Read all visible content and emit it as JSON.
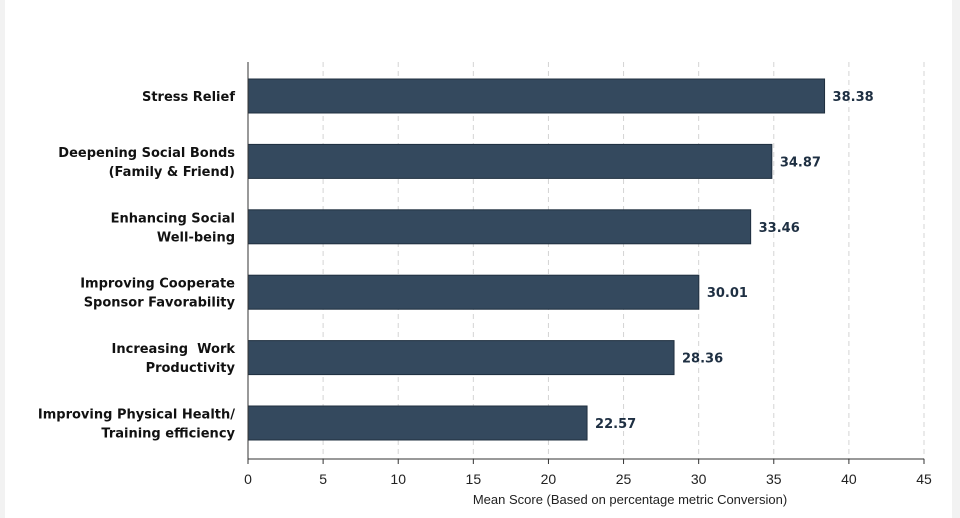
{
  "chart_data": {
    "type": "bar",
    "orientation": "horizontal",
    "categories": [
      [
        "Stress Relief"
      ],
      [
        "Deepening Social Bonds",
        "(Family & Friend)"
      ],
      [
        "Enhancing Social",
        "Well-being"
      ],
      [
        "Improving Cooperate",
        "Sponsor Favorability"
      ],
      [
        "Increasing  Work",
        "Productivity"
      ],
      [
        "Improving Physical Health/",
        "Training efficiency"
      ]
    ],
    "values": [
      38.38,
      34.87,
      33.46,
      30.01,
      28.36,
      22.57
    ],
    "value_labels": [
      "38.38",
      "34.87",
      "33.46",
      "30.01",
      "28.36",
      "22.57"
    ],
    "title": "",
    "xlabel": "Mean Score (Based on percentage metric Conversion)",
    "ylabel": "",
    "xlim": [
      0,
      45
    ],
    "xticks": [
      0,
      5,
      10,
      15,
      20,
      25,
      30,
      35,
      40,
      45
    ],
    "grid": "vertical dashed",
    "legend": "none",
    "colors": {
      "bar": "#34495e",
      "bar_edge": "#1f2f3f",
      "grid": "#d4d4d4",
      "axis": "#333333"
    }
  }
}
